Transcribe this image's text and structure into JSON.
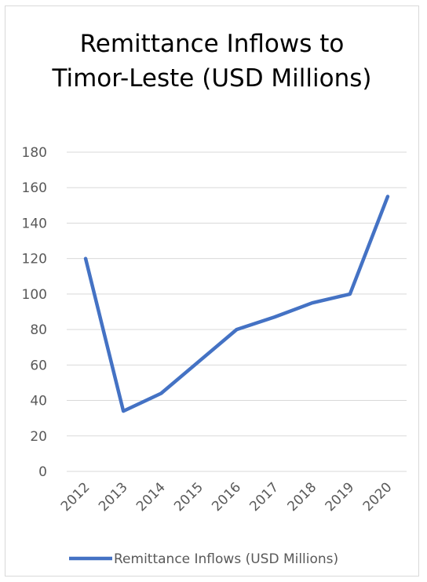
{
  "chart_data": {
    "type": "line",
    "title": "Remittance Inflows to Timor-Leste (USD Millions)",
    "categories": [
      "2012",
      "2013",
      "2014",
      "2015",
      "2016",
      "2017",
      "2018",
      "2019",
      "2020"
    ],
    "series": [
      {
        "name": "Remittance Inflows (USD Millions)",
        "values": [
          120,
          34,
          44,
          62,
          80,
          87,
          95,
          100,
          155
        ],
        "color": "#4472c4"
      }
    ],
    "yticks": [
      "0",
      "20",
      "40",
      "60",
      "80",
      "100",
      "120",
      "140",
      "160",
      "180"
    ],
    "ylim": [
      0,
      180
    ],
    "grid": true,
    "legend": "bottom"
  }
}
